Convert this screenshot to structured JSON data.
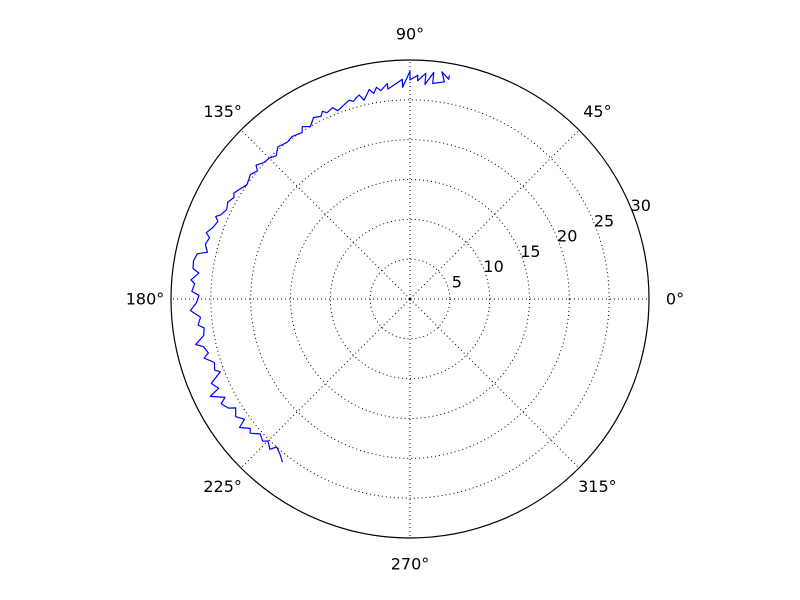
{
  "chart_data": {
    "type": "polar-line",
    "title": "",
    "angle_unit": "degrees",
    "r_range": [
      0,
      30
    ],
    "r_ticks": [
      5,
      10,
      15,
      20,
      25,
      30
    ],
    "r_tick_labels": [
      "5",
      "10",
      "15",
      "20",
      "25",
      "30"
    ],
    "theta_ticks": [
      0,
      45,
      90,
      135,
      180,
      225,
      270,
      315
    ],
    "theta_tick_labels": [
      "0°",
      "45°",
      "90°",
      "135°",
      "180°",
      "225°",
      "270°",
      "315°"
    ],
    "grid": true,
    "legend": "none",
    "series": [
      {
        "color": "#0000ff",
        "points": [
          [
            80,
            28.5
          ],
          [
            80,
            28.0
          ],
          [
            82,
            28.8
          ],
          [
            81,
            27.6
          ],
          [
            84,
            27.2
          ],
          [
            84,
            28.6
          ],
          [
            86,
            27.0
          ],
          [
            86,
            28.4
          ],
          [
            88,
            27.4
          ],
          [
            88,
            28.1
          ],
          [
            90,
            27.5
          ],
          [
            90,
            28.6
          ],
          [
            92,
            26.6
          ],
          [
            92,
            27.6
          ],
          [
            94,
            27.0
          ],
          [
            96,
            26.5
          ],
          [
            96,
            27.2
          ],
          [
            98,
            26.4
          ],
          [
            99,
            26.9
          ],
          [
            100,
            26.2
          ],
          [
            101,
            26.8
          ],
          [
            103,
            25.6
          ],
          [
            104,
            26.4
          ],
          [
            106,
            25.8
          ],
          [
            107,
            26.1
          ],
          [
            109,
            25.7
          ],
          [
            111,
            25.3
          ],
          [
            112,
            25.9
          ],
          [
            114,
            25.6
          ],
          [
            115,
            26.0
          ],
          [
            116,
            25.5
          ],
          [
            118,
            25.8
          ],
          [
            120,
            25.0
          ],
          [
            122,
            25.5
          ],
          [
            123,
            24.9
          ],
          [
            126,
            25.2
          ],
          [
            128,
            25.0
          ],
          [
            131,
            25.3
          ],
          [
            133,
            24.6
          ],
          [
            135,
            25.0
          ],
          [
            137,
            25.1
          ],
          [
            139,
            25.6
          ],
          [
            140,
            25.0
          ],
          [
            142,
            25.4
          ],
          [
            145,
            25.0
          ],
          [
            147,
            25.4
          ],
          [
            149,
            25.8
          ],
          [
            150,
            25.5
          ],
          [
            152,
            25.9
          ],
          [
            154,
            25.6
          ],
          [
            156,
            26.0
          ],
          [
            157,
            26.5
          ],
          [
            158,
            26.0
          ],
          [
            160,
            26.3
          ],
          [
            162,
            26.9
          ],
          [
            163,
            26.3
          ],
          [
            165,
            26.6
          ],
          [
            167,
            26.1
          ],
          [
            168,
            27.3
          ],
          [
            170,
            27.6
          ],
          [
            172,
            27.5
          ],
          [
            173,
            26.7
          ],
          [
            175,
            27.6
          ],
          [
            176,
            27.1
          ],
          [
            178,
            27.4
          ],
          [
            179,
            26.5
          ],
          [
            181,
            26.8
          ],
          [
            183,
            27.6
          ],
          [
            185,
            26.4
          ],
          [
            187,
            26.8
          ],
          [
            188,
            26.1
          ],
          [
            190,
            26.3
          ],
          [
            192,
            27.5
          ],
          [
            193,
            26.6
          ],
          [
            195,
            26.2
          ],
          [
            196,
            26.9
          ],
          [
            198,
            25.8
          ],
          [
            200,
            26.1
          ],
          [
            201,
            25.5
          ],
          [
            203,
            27.1
          ],
          [
            205,
            26.5
          ],
          [
            206,
            27.9
          ],
          [
            208,
            26.3
          ],
          [
            209,
            27.1
          ],
          [
            211,
            26.6
          ],
          [
            212,
            25.8
          ],
          [
            214,
            26.4
          ],
          [
            216,
            25.7
          ],
          [
            217,
            26.8
          ],
          [
            219,
            25.8
          ],
          [
            220,
            26.2
          ],
          [
            222,
            25.3
          ],
          [
            224,
            25.7
          ],
          [
            225,
            25.2
          ],
          [
            227,
            25.8
          ],
          [
            228,
            25.0
          ],
          [
            230,
            25.4
          ],
          [
            232,
            26.0
          ]
        ]
      }
    ]
  }
}
